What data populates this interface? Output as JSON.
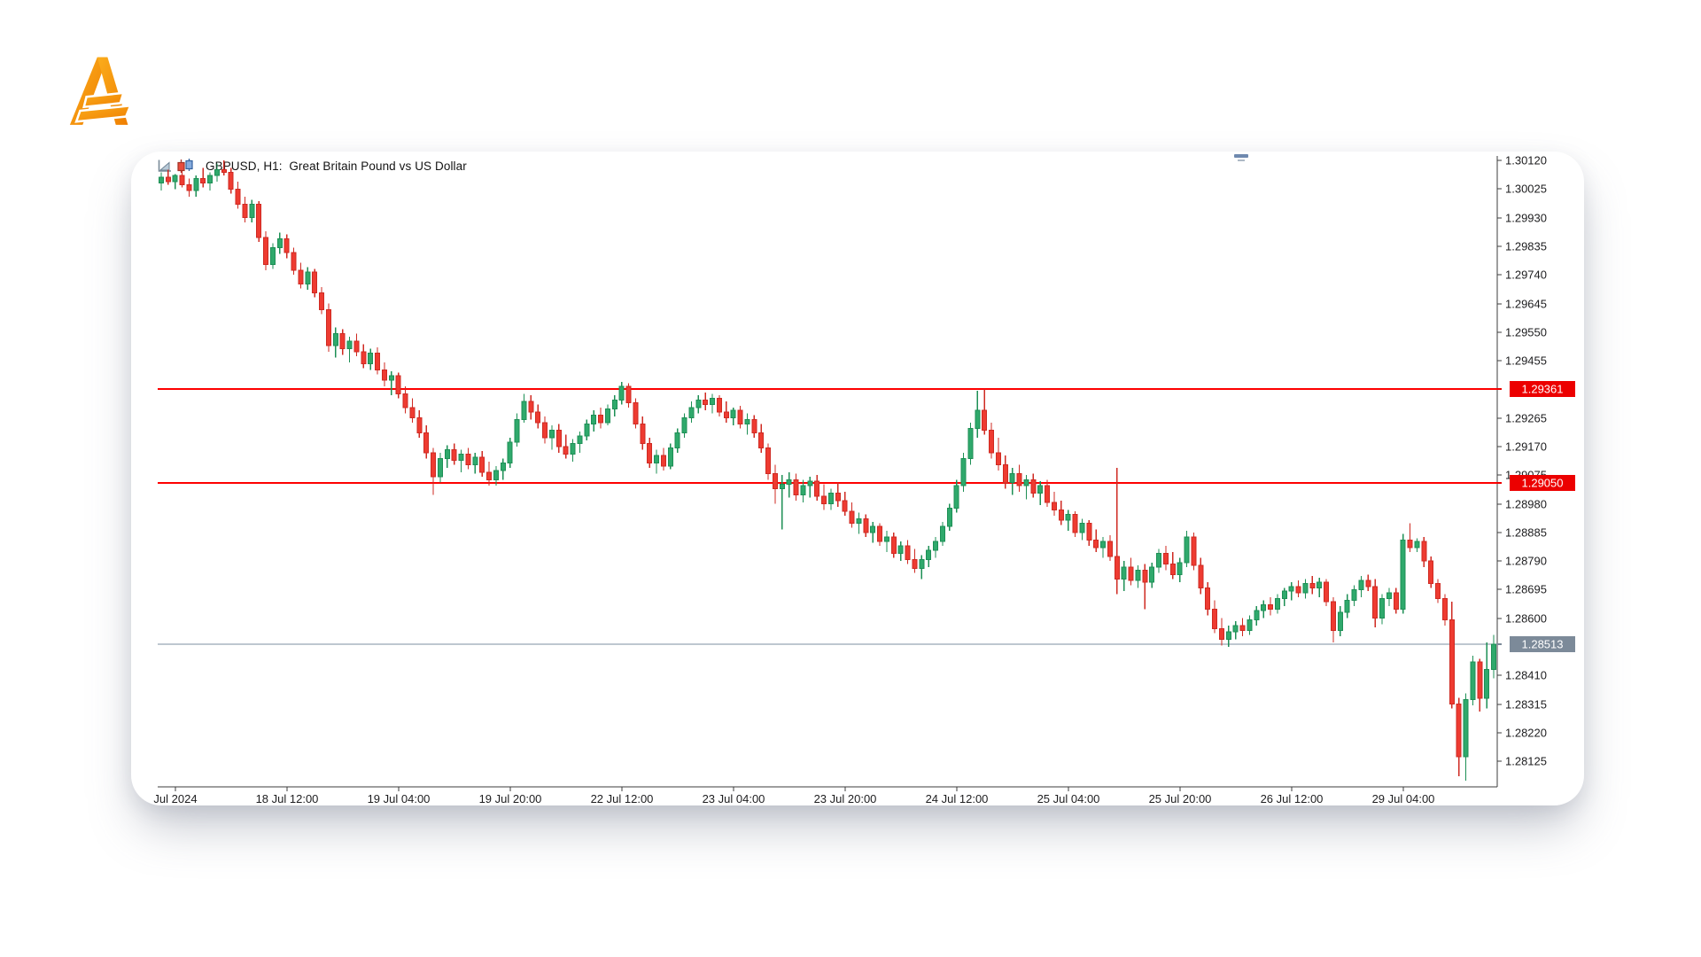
{
  "brand": {
    "logo_letter": "A",
    "logo_gradient_from": "#FBAD1C",
    "logo_gradient_to": "#EF7E01"
  },
  "chart": {
    "title": "GBPUSD, H1:  Great Britain Pound vs US Dollar",
    "symbol": "GBPUSD",
    "timeframe": "H1",
    "description": "Great Britain Pound vs US Dollar",
    "icons": [
      "chart-flag-icon",
      "candlesticks-icon"
    ]
  },
  "chart_data": {
    "type": "candlestick",
    "title": "GBPUSD, H1: Great Britain Pound vs US Dollar",
    "ylim": [
      1.2804,
      1.30135
    ],
    "grid": false,
    "legend": false,
    "last_price": "1.28513",
    "colors": {
      "up": "#2fa96c",
      "up_border": "#1d8f55",
      "down": "#ee3b31",
      "down_border": "#cf2a22",
      "axis_text": "#1d1d1f",
      "axis_line": "#3c3c3c",
      "red_level": "#fe0000",
      "red_label_bg": "#ec0000",
      "price_line": "#7e8fa0",
      "price_label_bg": "#7c8a99",
      "label_text": "#ffffff"
    },
    "y_ticks": [
      {
        "price": 1.3012,
        "label": "1.30120"
      },
      {
        "price": 1.30025,
        "label": "1.30025"
      },
      {
        "price": 1.2993,
        "label": "1.29930"
      },
      {
        "price": 1.29835,
        "label": "1.29835"
      },
      {
        "price": 1.2974,
        "label": "1.29740"
      },
      {
        "price": 1.29645,
        "label": "1.29645"
      },
      {
        "price": 1.2955,
        "label": "1.29550"
      },
      {
        "price": 1.29455,
        "label": "1.29455"
      },
      {
        "price": 1.29265,
        "label": "1.29265"
      },
      {
        "price": 1.2917,
        "label": "1.29170"
      },
      {
        "price": 1.29075,
        "label": "1.29075"
      },
      {
        "price": 1.2898,
        "label": "1.28980"
      },
      {
        "price": 1.28885,
        "label": "1.28885"
      },
      {
        "price": 1.2879,
        "label": "1.28790"
      },
      {
        "price": 1.28695,
        "label": "1.28695"
      },
      {
        "price": 1.286,
        "label": "1.28600"
      },
      {
        "price": 1.2841,
        "label": "1.28410"
      },
      {
        "price": 1.28315,
        "label": "1.28315"
      },
      {
        "price": 1.2822,
        "label": "1.28220"
      },
      {
        "price": 1.28125,
        "label": "1.28125"
      }
    ],
    "x_ticks": [
      {
        "bar": 2,
        "label": "Jul 2024"
      },
      {
        "bar": 18,
        "label": "18 Jul 12:00"
      },
      {
        "bar": 34,
        "label": "19 Jul 04:00"
      },
      {
        "bar": 50,
        "label": "19 Jul 20:00"
      },
      {
        "bar": 66,
        "label": "22 Jul 12:00"
      },
      {
        "bar": 82,
        "label": "23 Jul 04:00"
      },
      {
        "bar": 98,
        "label": "23 Jul 20:00"
      },
      {
        "bar": 114,
        "label": "24 Jul 12:00"
      },
      {
        "bar": 130,
        "label": "25 Jul 04:00"
      },
      {
        "bar": 146,
        "label": "25 Jul 20:00"
      },
      {
        "bar": 162,
        "label": "26 Jul 12:00"
      },
      {
        "bar": 178,
        "label": "29 Jul 04:00"
      }
    ],
    "hlines": [
      {
        "price": 1.29361,
        "label": "1.29361",
        "kind": "resistance",
        "width": 2
      },
      {
        "price": 1.2905,
        "label": "1.29050",
        "kind": "support",
        "width": 2
      },
      {
        "price": 1.28513,
        "label": "1.28513",
        "kind": "current-price",
        "width": 1.2
      }
    ],
    "candles": [
      [
        1.30045,
        1.3008,
        1.3002,
        1.30065
      ],
      [
        1.30065,
        1.3009,
        1.3004,
        1.3005
      ],
      [
        1.3005,
        1.30075,
        1.30025,
        1.3007
      ],
      [
        1.3007,
        1.30085,
        1.3003,
        1.3004
      ],
      [
        1.3004,
        1.3006,
        1.3,
        1.3002
      ],
      [
        1.3002,
        1.3007,
        1.3,
        1.3006
      ],
      [
        1.3006,
        1.30095,
        1.3003,
        1.30045
      ],
      [
        1.30045,
        1.3008,
        1.3002,
        1.3007
      ],
      [
        1.3007,
        1.3011,
        1.3005,
        1.3009
      ],
      [
        1.3009,
        1.3012,
        1.3007,
        1.3008
      ],
      [
        1.3008,
        1.30095,
        1.3001,
        1.30025
      ],
      [
        1.30025,
        1.3005,
        1.2996,
        1.29975
      ],
      [
        1.29975,
        1.3,
        1.29915,
        1.2993
      ],
      [
        1.2993,
        1.2999,
        1.29915,
        1.29975
      ],
      [
        1.29975,
        1.29985,
        1.2985,
        1.29865
      ],
      [
        1.29865,
        1.29885,
        1.29755,
        1.29775
      ],
      [
        1.29775,
        1.29845,
        1.2976,
        1.2983
      ],
      [
        1.2983,
        1.2988,
        1.2981,
        1.2986
      ],
      [
        1.2986,
        1.29875,
        1.29795,
        1.29815
      ],
      [
        1.29815,
        1.2983,
        1.2974,
        1.29755
      ],
      [
        1.29755,
        1.2978,
        1.29695,
        1.2971
      ],
      [
        1.2971,
        1.29765,
        1.2969,
        1.2975
      ],
      [
        1.2975,
        1.2976,
        1.29665,
        1.2968
      ],
      [
        1.2968,
        1.297,
        1.2961,
        1.29625
      ],
      [
        1.29625,
        1.29645,
        1.29485,
        1.29505
      ],
      [
        1.29505,
        1.29565,
        1.29465,
        1.29545
      ],
      [
        1.29545,
        1.2956,
        1.29475,
        1.29495
      ],
      [
        1.29495,
        1.29535,
        1.2945,
        1.2952
      ],
      [
        1.2952,
        1.29545,
        1.2947,
        1.29485
      ],
      [
        1.29485,
        1.2951,
        1.2943,
        1.29445
      ],
      [
        1.29445,
        1.29495,
        1.29425,
        1.2948
      ],
      [
        1.2948,
        1.295,
        1.2941,
        1.29425
      ],
      [
        1.29425,
        1.2945,
        1.2937,
        1.2939
      ],
      [
        1.2939,
        1.2942,
        1.2934,
        1.29405
      ],
      [
        1.29405,
        1.29415,
        1.2933,
        1.29345
      ],
      [
        1.29345,
        1.2937,
        1.2928,
        1.293
      ],
      [
        1.293,
        1.2933,
        1.2925,
        1.29265
      ],
      [
        1.29265,
        1.2929,
        1.292,
        1.29215
      ],
      [
        1.29215,
        1.2924,
        1.2913,
        1.2915
      ],
      [
        1.2915,
        1.29165,
        1.2901,
        1.2907
      ],
      [
        1.2907,
        1.2915,
        1.2905,
        1.2913
      ],
      [
        1.2913,
        1.29175,
        1.291,
        1.2916
      ],
      [
        1.2916,
        1.2918,
        1.2911,
        1.29125
      ],
      [
        1.29125,
        1.2916,
        1.29085,
        1.29145
      ],
      [
        1.29145,
        1.29165,
        1.29095,
        1.2911
      ],
      [
        1.2911,
        1.2915,
        1.2908,
        1.29135
      ],
      [
        1.29135,
        1.29155,
        1.2907,
        1.29085
      ],
      [
        1.29085,
        1.2912,
        1.2904,
        1.2906
      ],
      [
        1.2906,
        1.29105,
        1.2904,
        1.2909
      ],
      [
        1.2909,
        1.2913,
        1.2906,
        1.29115
      ],
      [
        1.29115,
        1.292,
        1.291,
        1.29185
      ],
      [
        1.29185,
        1.2928,
        1.2917,
        1.2926
      ],
      [
        1.2926,
        1.29345,
        1.2925,
        1.2932
      ],
      [
        1.2932,
        1.2934,
        1.2926,
        1.29285
      ],
      [
        1.29285,
        1.2931,
        1.2923,
        1.2925
      ],
      [
        1.2925,
        1.2927,
        1.2918,
        1.292
      ],
      [
        1.292,
        1.2924,
        1.2916,
        1.29225
      ],
      [
        1.29225,
        1.29245,
        1.2915,
        1.2917
      ],
      [
        1.2917,
        1.2921,
        1.2913,
        1.29145
      ],
      [
        1.29145,
        1.29195,
        1.2912,
        1.2918
      ],
      [
        1.2918,
        1.2922,
        1.2915,
        1.29205
      ],
      [
        1.29205,
        1.2926,
        1.2919,
        1.29245
      ],
      [
        1.29245,
        1.2929,
        1.2922,
        1.29275
      ],
      [
        1.29275,
        1.293,
        1.2923,
        1.2925
      ],
      [
        1.2925,
        1.2931,
        1.2924,
        1.29295
      ],
      [
        1.29295,
        1.2934,
        1.2927,
        1.29325
      ],
      [
        1.29325,
        1.29385,
        1.2931,
        1.2937
      ],
      [
        1.2937,
        1.2938,
        1.293,
        1.29315
      ],
      [
        1.29315,
        1.2933,
        1.2923,
        1.29245
      ],
      [
        1.29245,
        1.2927,
        1.2916,
        1.2918
      ],
      [
        1.2918,
        1.292,
        1.291,
        1.29115
      ],
      [
        1.29115,
        1.2916,
        1.2908,
        1.2914
      ],
      [
        1.2914,
        1.29165,
        1.2909,
        1.29105
      ],
      [
        1.29105,
        1.2918,
        1.29095,
        1.29165
      ],
      [
        1.29165,
        1.2923,
        1.2915,
        1.29215
      ],
      [
        1.29215,
        1.2928,
        1.292,
        1.29265
      ],
      [
        1.29265,
        1.2932,
        1.2925,
        1.293
      ],
      [
        1.293,
        1.2934,
        1.2928,
        1.29325
      ],
      [
        1.29325,
        1.2935,
        1.2929,
        1.2931
      ],
      [
        1.2931,
        1.29345,
        1.2928,
        1.2933
      ],
      [
        1.2933,
        1.2934,
        1.2927,
        1.29285
      ],
      [
        1.29285,
        1.2932,
        1.2925,
        1.29265
      ],
      [
        1.29265,
        1.293,
        1.2924,
        1.2929
      ],
      [
        1.2929,
        1.29305,
        1.2923,
        1.29245
      ],
      [
        1.29245,
        1.2928,
        1.2921,
        1.2926
      ],
      [
        1.2926,
        1.29275,
        1.292,
        1.29215
      ],
      [
        1.29215,
        1.29245,
        1.2915,
        1.29165
      ],
      [
        1.29165,
        1.2918,
        1.2906,
        1.2908
      ],
      [
        1.2908,
        1.2911,
        1.2898,
        1.2903
      ],
      [
        1.2903,
        1.29075,
        1.28895,
        1.29045
      ],
      [
        1.29045,
        1.29085,
        1.29,
        1.2906
      ],
      [
        1.2906,
        1.2908,
        1.2899,
        1.2901
      ],
      [
        1.2901,
        1.2906,
        1.28985,
        1.2904
      ],
      [
        1.2904,
        1.2907,
        1.29,
        1.29055
      ],
      [
        1.29055,
        1.29075,
        1.2899,
        1.29005
      ],
      [
        1.29005,
        1.29045,
        1.2896,
        1.2898
      ],
      [
        1.2898,
        1.2903,
        1.2896,
        1.29015
      ],
      [
        1.29015,
        1.2905,
        1.2897,
        1.2899
      ],
      [
        1.2899,
        1.2902,
        1.2894,
        1.28955
      ],
      [
        1.28955,
        1.28985,
        1.289,
        1.28915
      ],
      [
        1.28915,
        1.2895,
        1.2888,
        1.2893
      ],
      [
        1.2893,
        1.28945,
        1.2887,
        1.28885
      ],
      [
        1.28885,
        1.2892,
        1.2885,
        1.28905
      ],
      [
        1.28905,
        1.28915,
        1.2884,
        1.28855
      ],
      [
        1.28855,
        1.2889,
        1.2882,
        1.2887
      ],
      [
        1.2887,
        1.28885,
        1.288,
        1.28815
      ],
      [
        1.28815,
        1.28855,
        1.2879,
        1.2884
      ],
      [
        1.2884,
        1.2886,
        1.2878,
        1.28795
      ],
      [
        1.28795,
        1.2883,
        1.2875,
        1.28765
      ],
      [
        1.28765,
        1.2881,
        1.2873,
        1.28795
      ],
      [
        1.28795,
        1.2884,
        1.2877,
        1.28825
      ],
      [
        1.28825,
        1.2887,
        1.288,
        1.28855
      ],
      [
        1.28855,
        1.2892,
        1.2884,
        1.28905
      ],
      [
        1.28905,
        1.2898,
        1.2889,
        1.28965
      ],
      [
        1.28965,
        1.2906,
        1.2895,
        1.2904
      ],
      [
        1.2904,
        1.2915,
        1.2902,
        1.2913
      ],
      [
        1.2913,
        1.2925,
        1.2911,
        1.2923
      ],
      [
        1.2923,
        1.29355,
        1.292,
        1.2929
      ],
      [
        1.2929,
        1.29361,
        1.2921,
        1.29225
      ],
      [
        1.29225,
        1.2925,
        1.2913,
        1.2915
      ],
      [
        1.2915,
        1.292,
        1.2909,
        1.2911
      ],
      [
        1.2911,
        1.2914,
        1.2903,
        1.2905
      ],
      [
        1.2905,
        1.291,
        1.2901,
        1.2908
      ],
      [
        1.2908,
        1.2911,
        1.2902,
        1.2904
      ],
      [
        1.2904,
        1.29075,
        1.28995,
        1.2906
      ],
      [
        1.2906,
        1.2908,
        1.29,
        1.29015
      ],
      [
        1.29015,
        1.29055,
        1.28975,
        1.2904
      ],
      [
        1.2904,
        1.2906,
        1.2897,
        1.28985
      ],
      [
        1.28985,
        1.2902,
        1.2894,
        1.2896
      ],
      [
        1.2896,
        1.2899,
        1.2891,
        1.28925
      ],
      [
        1.28925,
        1.2896,
        1.2889,
        1.28945
      ],
      [
        1.28945,
        1.28955,
        1.2887,
        1.28885
      ],
      [
        1.28885,
        1.2893,
        1.2886,
        1.28915
      ],
      [
        1.28915,
        1.28925,
        1.2884,
        1.2886
      ],
      [
        1.2886,
        1.28895,
        1.2882,
        1.28835
      ],
      [
        1.28835,
        1.2887,
        1.288,
        1.28855
      ],
      [
        1.28855,
        1.28875,
        1.2879,
        1.28805
      ],
      [
        1.28805,
        1.291,
        1.2868,
        1.2873
      ],
      [
        1.2873,
        1.2879,
        1.2869,
        1.2877
      ],
      [
        1.2877,
        1.288,
        1.2871,
        1.28725
      ],
      [
        1.28725,
        1.28775,
        1.287,
        1.2876
      ],
      [
        1.2876,
        1.2878,
        1.2863,
        1.2872
      ],
      [
        1.2872,
        1.28785,
        1.287,
        1.2877
      ],
      [
        1.2877,
        1.2883,
        1.2875,
        1.28815
      ],
      [
        1.28815,
        1.2884,
        1.2876,
        1.2878
      ],
      [
        1.2878,
        1.2882,
        1.2873,
        1.28745
      ],
      [
        1.28745,
        1.288,
        1.2872,
        1.28785
      ],
      [
        1.28785,
        1.2889,
        1.2877,
        1.2887
      ],
      [
        1.2887,
        1.28885,
        1.2876,
        1.28775
      ],
      [
        1.28775,
        1.288,
        1.2868,
        1.287
      ],
      [
        1.287,
        1.2872,
        1.2861,
        1.2863
      ],
      [
        1.2863,
        1.2866,
        1.2855,
        1.28565
      ],
      [
        1.28565,
        1.286,
        1.2851,
        1.2853
      ],
      [
        1.2853,
        1.28575,
        1.28505,
        1.28555
      ],
      [
        1.28555,
        1.2859,
        1.2853,
        1.28575
      ],
      [
        1.28575,
        1.286,
        1.2854,
        1.2856
      ],
      [
        1.2856,
        1.2861,
        1.28545,
        1.28595
      ],
      [
        1.28595,
        1.2864,
        1.28575,
        1.28625
      ],
      [
        1.28625,
        1.2866,
        1.286,
        1.28645
      ],
      [
        1.28645,
        1.2867,
        1.2861,
        1.2863
      ],
      [
        1.2863,
        1.2868,
        1.28615,
        1.28665
      ],
      [
        1.28665,
        1.287,
        1.2864,
        1.2869
      ],
      [
        1.2869,
        1.2872,
        1.2866,
        1.28705
      ],
      [
        1.28705,
        1.28725,
        1.2867,
        1.28685
      ],
      [
        1.28685,
        1.2873,
        1.28665,
        1.28715
      ],
      [
        1.28715,
        1.2874,
        1.2868,
        1.287
      ],
      [
        1.287,
        1.28735,
        1.2867,
        1.2872
      ],
      [
        1.2872,
        1.2873,
        1.2864,
        1.28655
      ],
      [
        1.28655,
        1.2867,
        1.2852,
        1.2856
      ],
      [
        1.2856,
        1.2864,
        1.2854,
        1.2862
      ],
      [
        1.2862,
        1.2868,
        1.286,
        1.2866
      ],
      [
        1.2866,
        1.2871,
        1.2864,
        1.28695
      ],
      [
        1.28695,
        1.2874,
        1.2867,
        1.28725
      ],
      [
        1.28725,
        1.28745,
        1.2869,
        1.28705
      ],
      [
        1.28705,
        1.2873,
        1.2857,
        1.286
      ],
      [
        1.286,
        1.2868,
        1.2858,
        1.28665
      ],
      [
        1.28665,
        1.287,
        1.2864,
        1.28685
      ],
      [
        1.28685,
        1.287,
        1.28615,
        1.2863
      ],
      [
        1.2863,
        1.2888,
        1.28615,
        1.2886
      ],
      [
        1.2886,
        1.28915,
        1.2882,
        1.28835
      ],
      [
        1.28835,
        1.28865,
        1.2882,
        1.28855
      ],
      [
        1.28855,
        1.2887,
        1.2877,
        1.2879
      ],
      [
        1.2879,
        1.28805,
        1.287,
        1.28715
      ],
      [
        1.28715,
        1.2873,
        1.2865,
        1.28665
      ],
      [
        1.28665,
        1.2868,
        1.28575,
        1.28595
      ],
      [
        1.28595,
        1.28655,
        1.283,
        1.28315
      ],
      [
        1.28315,
        1.28335,
        1.28075,
        1.2814
      ],
      [
        1.2814,
        1.2835,
        1.2806,
        1.2833
      ],
      [
        1.2833,
        1.28475,
        1.2831,
        1.28455
      ],
      [
        1.28455,
        1.28465,
        1.2829,
        1.28335
      ],
      [
        1.28335,
        1.2852,
        1.283,
        1.2843
      ],
      [
        1.2843,
        1.28545,
        1.284,
        1.28513
      ]
    ]
  }
}
